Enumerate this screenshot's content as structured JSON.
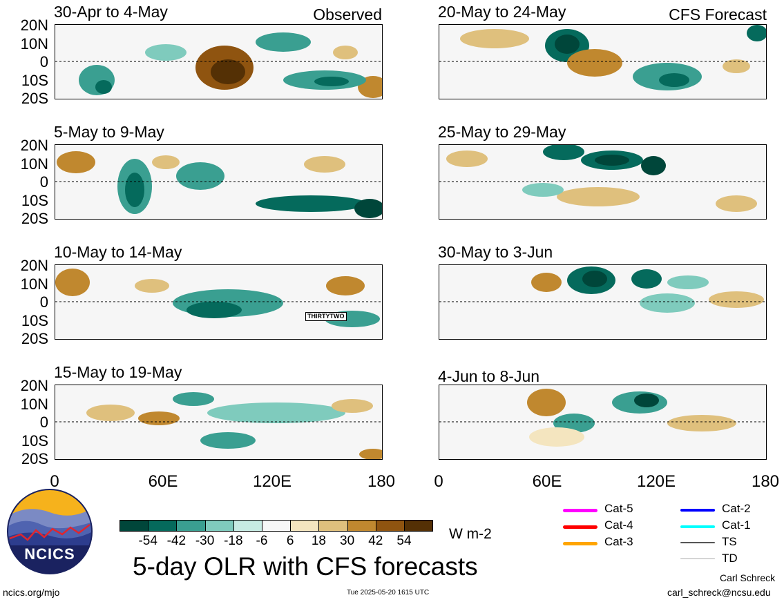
{
  "panels": [
    {
      "title": "30-Apr to 4-May",
      "tag": "Observed"
    },
    {
      "title": "20-May to 24-May",
      "tag": "CFS Forecast"
    },
    {
      "title": "5-May to 9-May",
      "tag": ""
    },
    {
      "title": "25-May to 29-May",
      "tag": ""
    },
    {
      "title": "10-May to 14-May",
      "tag": ""
    },
    {
      "title": "30-May to 3-Jun",
      "tag": ""
    },
    {
      "title": "15-May to 19-May",
      "tag": ""
    },
    {
      "title": "4-Jun to 8-Jun",
      "tag": ""
    }
  ],
  "lat_labels": [
    "20N",
    "10N",
    "0",
    "10S",
    "20S"
  ],
  "lon_labels": [
    "0",
    "60E",
    "120E",
    "180"
  ],
  "storm_label": "THIRTYTWO",
  "colorbar": {
    "colors": [
      "#00463a",
      "#056a5c",
      "#3a9f91",
      "#7fcbbd",
      "#c7ebe3",
      "#f7f7f7",
      "#f4e5bf",
      "#dfc07d",
      "#c0882f",
      "#8f5410",
      "#543005"
    ],
    "labels": [
      "-54",
      "-42",
      "-30",
      "-18",
      "-6",
      "6",
      "18",
      "30",
      "42",
      "54"
    ],
    "units": "W m-2"
  },
  "legend": [
    {
      "label": "Cat-5",
      "color": "#ff00ff"
    },
    {
      "label": "Cat-4",
      "color": "#ff0000"
    },
    {
      "label": "Cat-3",
      "color": "#ffa500"
    },
    {
      "label": "Cat-2",
      "color": "#0000ff"
    },
    {
      "label": "Cat-1",
      "color": "#00ffff"
    },
    {
      "label": "TS",
      "color": "#555555"
    },
    {
      "label": "TD",
      "color": "#aaaaaa"
    }
  ],
  "logo_text": "NCICS",
  "main_title": "5-day OLR with CFS forecasts",
  "website": "ncics.org/mjo",
  "timestamp": "Tue 2025-05-20 1615 UTC",
  "author": "Carl Schreck",
  "email": "carl_schreck@ncsu.edu"
}
